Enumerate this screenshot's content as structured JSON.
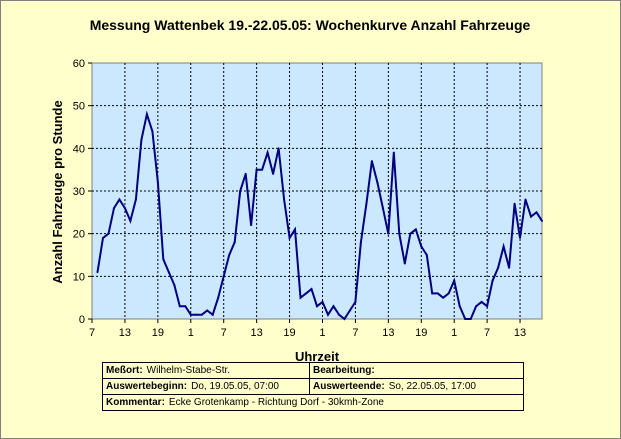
{
  "chart_data": {
    "type": "line",
    "title": "Messung Wattenbek 19.-22.05.05: Wochenkurve Anzahl Fahrzeuge",
    "xlabel": "Uhrzeit",
    "ylabel": "Anzahl Fahrzeuge pro Stunde",
    "ylim": [
      0,
      60
    ],
    "yticks": [
      0,
      10,
      20,
      30,
      40,
      50,
      60
    ],
    "xlim": [
      7,
      89
    ],
    "xticks": [
      {
        "pos": 7,
        "label": "7"
      },
      {
        "pos": 13,
        "label": "13"
      },
      {
        "pos": 19,
        "label": "19"
      },
      {
        "pos": 25,
        "label": "1"
      },
      {
        "pos": 31,
        "label": "7"
      },
      {
        "pos": 37,
        "label": "13"
      },
      {
        "pos": 43,
        "label": "19"
      },
      {
        "pos": 49,
        "label": "1"
      },
      {
        "pos": 55,
        "label": "7"
      },
      {
        "pos": 61,
        "label": "13"
      },
      {
        "pos": 67,
        "label": "19"
      },
      {
        "pos": 73,
        "label": "1"
      },
      {
        "pos": 79,
        "label": "7"
      },
      {
        "pos": 85,
        "label": "13"
      }
    ],
    "grid": true,
    "series": [
      {
        "color": "#000080",
        "x": [
          8,
          9,
          10,
          11,
          12,
          13,
          14,
          15,
          16,
          17,
          18,
          19,
          20,
          21,
          22,
          23,
          24,
          25,
          26,
          27,
          28,
          29,
          30,
          31,
          32,
          33,
          34,
          35,
          36,
          37,
          38,
          39,
          40,
          41,
          42,
          43,
          44,
          45,
          46,
          47,
          48,
          49,
          50,
          51,
          52,
          53,
          54,
          55,
          56,
          57,
          58,
          59,
          60,
          61,
          62,
          63,
          64,
          65,
          66,
          67,
          68,
          69,
          70,
          71,
          72,
          73,
          74,
          75,
          76,
          77,
          78,
          79,
          80,
          81,
          82,
          83,
          84,
          85,
          86,
          87,
          88,
          89
        ],
        "values": [
          11,
          19,
          20,
          26,
          28,
          26,
          23,
          28,
          42,
          48,
          44,
          32,
          14,
          11,
          8,
          3,
          3,
          1,
          1,
          1,
          2,
          1,
          5,
          10,
          15,
          18,
          30,
          34,
          22,
          35,
          35,
          39,
          34,
          40,
          28,
          19,
          21,
          5,
          6,
          7,
          3,
          4,
          1,
          3,
          1,
          0,
          2,
          4,
          18,
          27,
          37,
          32,
          26,
          20,
          39,
          20,
          13,
          20,
          21,
          17,
          15,
          6,
          6,
          5,
          6,
          9,
          3,
          0,
          0,
          3,
          4,
          3,
          9,
          12,
          17,
          12,
          27,
          19,
          28,
          24,
          25,
          23
        ]
      }
    ]
  },
  "info": {
    "messort_label": "Meßort:",
    "messort_value": "Wilhelm-Stabe-Str.",
    "bearbeitung_label": "Bearbeitung:",
    "bearbeitung_value": "",
    "beginn_label": "Auswertebeginn:",
    "beginn_value": "Do, 19.05.05, 07:00",
    "ende_label": "Auswerteende:",
    "ende_value": "So, 22.05.05, 17:00",
    "kommentar_label": "Kommentar:",
    "kommentar_value": "Ecke Grotenkamp - Richtung Dorf - 30kmh-Zone"
  }
}
